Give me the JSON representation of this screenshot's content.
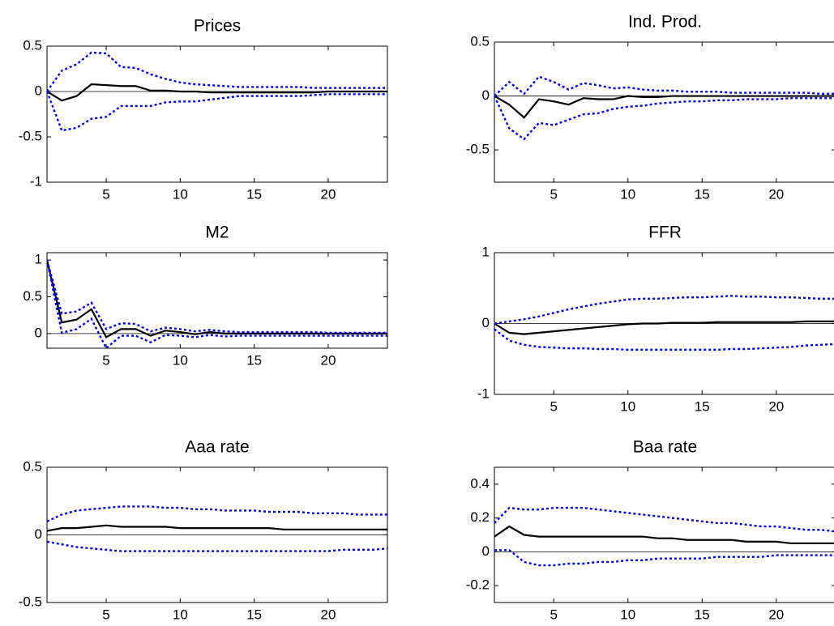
{
  "chart_data": [
    {
      "type": "line",
      "title": "Prices",
      "x": [
        1,
        2,
        3,
        4,
        5,
        6,
        7,
        8,
        9,
        10,
        11,
        12,
        13,
        14,
        15,
        16,
        17,
        18,
        19,
        20,
        21,
        22,
        23,
        24
      ],
      "xlim": [
        1,
        24
      ],
      "xticks": [
        5,
        10,
        15,
        20
      ],
      "ylim": [
        -1,
        0.5
      ],
      "yticks": [
        -1,
        -0.5,
        0,
        0.5
      ],
      "series": [
        {
          "color": "#000000",
          "style": "solid",
          "values": [
            0,
            -0.1,
            -0.05,
            0.08,
            0.07,
            0.06,
            0.06,
            0.01,
            0.01,
            0,
            0,
            -0.01,
            -0.01,
            -0.01,
            -0.01,
            -0.01,
            -0.01,
            -0.01,
            -0.01,
            0,
            0,
            0,
            0,
            0
          ]
        },
        {
          "color": "#0000ee",
          "style": "dotted",
          "values": [
            0,
            0.23,
            0.3,
            0.43,
            0.42,
            0.27,
            0.26,
            0.19,
            0.14,
            0.1,
            0.08,
            0.07,
            0.06,
            0.05,
            0.05,
            0.05,
            0.05,
            0.05,
            0.04,
            0.04,
            0.04,
            0.04,
            0.04,
            0.04
          ]
        },
        {
          "color": "#0000ee",
          "style": "dotted",
          "values": [
            0,
            -0.43,
            -0.4,
            -0.3,
            -0.28,
            -0.16,
            -0.16,
            -0.16,
            -0.12,
            -0.11,
            -0.11,
            -0.09,
            -0.07,
            -0.05,
            -0.05,
            -0.05,
            -0.05,
            -0.05,
            -0.04,
            -0.03,
            -0.03,
            -0.03,
            -0.03,
            -0.03
          ]
        }
      ]
    },
    {
      "type": "line",
      "title": "Ind. Prod.",
      "x": [
        1,
        2,
        3,
        4,
        5,
        6,
        7,
        8,
        9,
        10,
        11,
        12,
        13,
        14,
        15,
        16,
        17,
        18,
        19,
        20,
        21,
        22,
        23,
        24
      ],
      "xlim": [
        1,
        24
      ],
      "xticks": [
        5,
        10,
        15,
        20
      ],
      "ylim": [
        -0.8,
        0.5
      ],
      "yticks": [
        -0.5,
        0,
        0.5
      ],
      "series": [
        {
          "color": "#000000",
          "style": "solid",
          "values": [
            0,
            -0.08,
            -0.2,
            -0.03,
            -0.05,
            -0.08,
            -0.02,
            -0.03,
            -0.03,
            0,
            -0.01,
            -0.01,
            0,
            0,
            0,
            0,
            0,
            0,
            0,
            0,
            0,
            0,
            0,
            0
          ]
        },
        {
          "color": "#0000ee",
          "style": "dotted",
          "values": [
            0,
            0.13,
            0.02,
            0.18,
            0.13,
            0.06,
            0.12,
            0.1,
            0.07,
            0.08,
            0.06,
            0.05,
            0.05,
            0.04,
            0.04,
            0.04,
            0.03,
            0.03,
            0.03,
            0.03,
            0.03,
            0.03,
            0.02,
            0.02
          ]
        },
        {
          "color": "#0000ee",
          "style": "dotted",
          "values": [
            0,
            -0.3,
            -0.4,
            -0.25,
            -0.27,
            -0.22,
            -0.17,
            -0.16,
            -0.12,
            -0.1,
            -0.09,
            -0.07,
            -0.06,
            -0.05,
            -0.05,
            -0.04,
            -0.04,
            -0.03,
            -0.03,
            -0.03,
            -0.02,
            -0.02,
            -0.02,
            -0.02
          ]
        }
      ]
    },
    {
      "type": "line",
      "title": "M2",
      "x": [
        1,
        2,
        3,
        4,
        5,
        6,
        7,
        8,
        9,
        10,
        11,
        12,
        13,
        14,
        15,
        16,
        17,
        18,
        19,
        20,
        21,
        22,
        23,
        24
      ],
      "xlim": [
        1,
        24
      ],
      "xticks": [
        5,
        10,
        15,
        20
      ],
      "ylim": [
        -0.2,
        1.1
      ],
      "yticks": [
        0,
        0.5,
        1
      ],
      "series": [
        {
          "color": "#000000",
          "style": "solid",
          "values": [
            1,
            0.15,
            0.19,
            0.33,
            -0.05,
            0.06,
            0.06,
            -0.03,
            0.04,
            0.02,
            -0.01,
            0.02,
            0,
            0,
            0,
            0,
            0,
            0,
            0,
            0,
            0,
            0,
            0,
            0
          ]
        },
        {
          "color": "#0000ee",
          "style": "dotted",
          "values": [
            1,
            0.27,
            0.3,
            0.42,
            0.06,
            0.14,
            0.13,
            0.03,
            0.08,
            0.06,
            0.03,
            0.05,
            0.03,
            0.02,
            0.02,
            0.02,
            0.02,
            0.02,
            0.02,
            0.01,
            0.01,
            0.01,
            0.01,
            0.01
          ]
        },
        {
          "color": "#0000ee",
          "style": "dotted",
          "values": [
            1,
            0.01,
            0.06,
            0.2,
            -0.2,
            -0.03,
            -0.03,
            -0.12,
            -0.02,
            -0.03,
            -0.05,
            -0.02,
            -0.04,
            -0.03,
            -0.03,
            -0.03,
            -0.03,
            -0.03,
            -0.03,
            -0.03,
            -0.03,
            -0.03,
            -0.03,
            -0.03
          ]
        }
      ]
    },
    {
      "type": "line",
      "title": "FFR",
      "x": [
        1,
        2,
        3,
        4,
        5,
        6,
        7,
        8,
        9,
        10,
        11,
        12,
        13,
        14,
        15,
        16,
        17,
        18,
        19,
        20,
        21,
        22,
        23,
        24
      ],
      "xlim": [
        1,
        24
      ],
      "xticks": [
        5,
        10,
        15,
        20
      ],
      "ylim": [
        -1,
        1
      ],
      "yticks": [
        -1,
        0,
        1
      ],
      "series": [
        {
          "color": "#000000",
          "style": "solid",
          "values": [
            0,
            -0.13,
            -0.15,
            -0.13,
            -0.11,
            -0.09,
            -0.07,
            -0.05,
            -0.03,
            -0.01,
            0,
            0,
            0.01,
            0.01,
            0.01,
            0.02,
            0.02,
            0.02,
            0.02,
            0.02,
            0.02,
            0.03,
            0.03,
            0.03
          ]
        },
        {
          "color": "#0000ee",
          "style": "dotted",
          "values": [
            0,
            0.03,
            0.06,
            0.1,
            0.15,
            0.2,
            0.24,
            0.28,
            0.31,
            0.34,
            0.35,
            0.35,
            0.36,
            0.37,
            0.37,
            0.38,
            0.39,
            0.38,
            0.38,
            0.37,
            0.37,
            0.36,
            0.35,
            0.35
          ]
        },
        {
          "color": "#0000ee",
          "style": "dotted",
          "values": [
            -0.08,
            -0.24,
            -0.3,
            -0.33,
            -0.34,
            -0.35,
            -0.35,
            -0.36,
            -0.36,
            -0.37,
            -0.37,
            -0.37,
            -0.37,
            -0.37,
            -0.37,
            -0.37,
            -0.36,
            -0.36,
            -0.35,
            -0.34,
            -0.33,
            -0.31,
            -0.3,
            -0.29
          ]
        }
      ]
    },
    {
      "type": "line",
      "title": "Aaa rate",
      "x": [
        1,
        2,
        3,
        4,
        5,
        6,
        7,
        8,
        9,
        10,
        11,
        12,
        13,
        14,
        15,
        16,
        17,
        18,
        19,
        20,
        21,
        22,
        23,
        24
      ],
      "xlim": [
        1,
        24
      ],
      "xticks": [
        5,
        10,
        15,
        20
      ],
      "ylim": [
        -0.5,
        0.5
      ],
      "yticks": [
        -0.5,
        0,
        0.5
      ],
      "series": [
        {
          "color": "#000000",
          "style": "solid",
          "values": [
            0.03,
            0.05,
            0.05,
            0.06,
            0.07,
            0.06,
            0.06,
            0.06,
            0.06,
            0.05,
            0.05,
            0.05,
            0.05,
            0.05,
            0.05,
            0.05,
            0.04,
            0.04,
            0.04,
            0.04,
            0.04,
            0.04,
            0.04,
            0.04
          ]
        },
        {
          "color": "#0000ee",
          "style": "dotted",
          "values": [
            0.1,
            0.15,
            0.18,
            0.19,
            0.2,
            0.21,
            0.21,
            0.21,
            0.2,
            0.2,
            0.19,
            0.19,
            0.18,
            0.18,
            0.18,
            0.17,
            0.17,
            0.17,
            0.16,
            0.16,
            0.16,
            0.15,
            0.15,
            0.15
          ]
        },
        {
          "color": "#0000ee",
          "style": "dotted",
          "values": [
            -0.05,
            -0.07,
            -0.09,
            -0.1,
            -0.11,
            -0.12,
            -0.12,
            -0.12,
            -0.12,
            -0.12,
            -0.12,
            -0.12,
            -0.12,
            -0.12,
            -0.12,
            -0.12,
            -0.12,
            -0.12,
            -0.12,
            -0.12,
            -0.11,
            -0.11,
            -0.11,
            -0.1
          ]
        }
      ]
    },
    {
      "type": "line",
      "title": "Baa rate",
      "x": [
        1,
        2,
        3,
        4,
        5,
        6,
        7,
        8,
        9,
        10,
        11,
        12,
        13,
        14,
        15,
        16,
        17,
        18,
        19,
        20,
        21,
        22,
        23,
        24
      ],
      "xlim": [
        1,
        24
      ],
      "xticks": [
        5,
        10,
        15,
        20
      ],
      "ylim": [
        -0.3,
        0.5
      ],
      "yticks": [
        -0.2,
        0,
        0.2,
        0.4
      ],
      "series": [
        {
          "color": "#000000",
          "style": "solid",
          "values": [
            0.09,
            0.15,
            0.1,
            0.09,
            0.09,
            0.09,
            0.09,
            0.09,
            0.09,
            0.09,
            0.09,
            0.08,
            0.08,
            0.07,
            0.07,
            0.07,
            0.07,
            0.06,
            0.06,
            0.06,
            0.05,
            0.05,
            0.05,
            0.05
          ]
        },
        {
          "color": "#0000ee",
          "style": "dotted",
          "values": [
            0.17,
            0.26,
            0.25,
            0.25,
            0.26,
            0.26,
            0.26,
            0.25,
            0.24,
            0.23,
            0.22,
            0.21,
            0.2,
            0.19,
            0.18,
            0.17,
            0.17,
            0.16,
            0.15,
            0.15,
            0.14,
            0.13,
            0.13,
            0.12
          ]
        },
        {
          "color": "#0000ee",
          "style": "dotted",
          "values": [
            0.01,
            0.01,
            -0.06,
            -0.08,
            -0.08,
            -0.07,
            -0.07,
            -0.06,
            -0.06,
            -0.05,
            -0.05,
            -0.04,
            -0.04,
            -0.04,
            -0.04,
            -0.03,
            -0.03,
            -0.03,
            -0.03,
            -0.02,
            -0.02,
            -0.02,
            -0.02,
            -0.02
          ]
        }
      ]
    }
  ]
}
